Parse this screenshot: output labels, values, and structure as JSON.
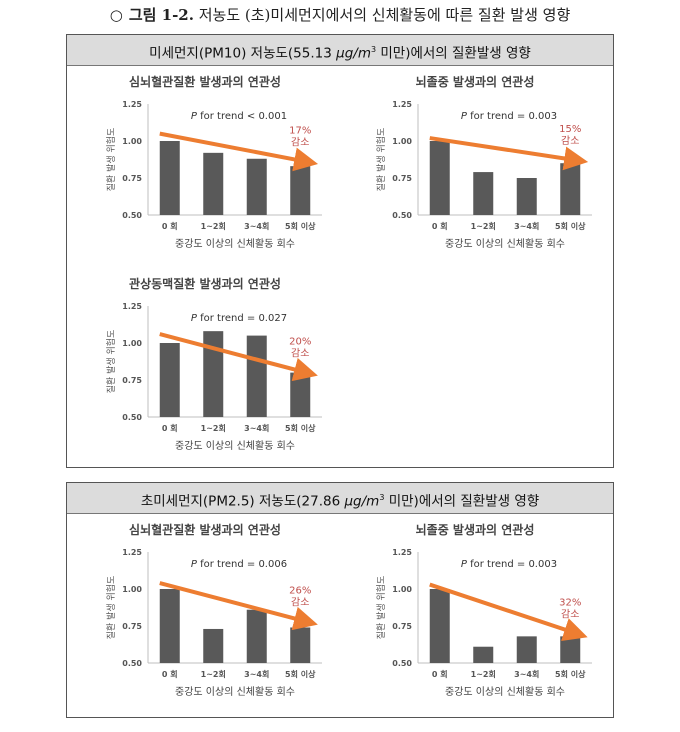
{
  "figure": {
    "marker": "○",
    "label": "그림 1-2.",
    "title": " 저농도 (초)미세먼지에서의 신체활동에 따른 질환 발생 영향"
  },
  "panels": [
    {
      "header_pre": "미세먼지(PM10) 저농도(55.13 ",
      "unit_main": "μg/m",
      "unit_sup": "3",
      "header_post": " 미만)에서의 질환발생 영향"
    },
    {
      "header_pre": "초미세먼지(PM2.5) 저농도(27.86 ",
      "unit_main": "μg/m",
      "unit_sup": "3",
      "header_post": " 미만)에서의 질환발생 영향"
    }
  ],
  "colors": {
    "bar": "#595959",
    "trend": "#ed7d31",
    "reduction_text": "#c0504d",
    "axis": "#bfbfbf"
  },
  "chart_data": [
    {
      "type": "bar",
      "title": "심뇌혈관질환 발생과의 연관성",
      "categories": [
        "0 회",
        "1~2회",
        "3~4회",
        "5회 이상"
      ],
      "values": [
        1.0,
        0.92,
        0.88,
        0.83
      ],
      "ylim": [
        0.5,
        1.25
      ],
      "yticks": [
        "0.50",
        "0.75",
        "1.00",
        "1.25"
      ],
      "ylabel": "질환 발생 위험도",
      "xlabel": "중강도 이상의 신체활동 회수",
      "trend_text": "for trend < 0.001",
      "trend_from": 1.05,
      "trend_to": 0.86,
      "reduction_pct": "17%",
      "reduction_word": "감소"
    },
    {
      "type": "bar",
      "title": "뇌졸중 발생과의 연관성",
      "categories": [
        "0 회",
        "1~2회",
        "3~4회",
        "5회 이상"
      ],
      "values": [
        1.0,
        0.79,
        0.75,
        0.85
      ],
      "ylim": [
        0.5,
        1.25
      ],
      "yticks": [
        "0.50",
        "0.75",
        "1.00",
        "1.25"
      ],
      "ylabel": "질환 발생 위험도",
      "xlabel": "중강도 이상의 신체활동 회수",
      "trend_text": "for trend = 0.003",
      "trend_from": 1.02,
      "trend_to": 0.87,
      "reduction_pct": "15%",
      "reduction_word": "감소"
    },
    {
      "type": "bar",
      "title": "관상동맥질환 발생과의 연관성",
      "categories": [
        "0 회",
        "1~2회",
        "3~4회",
        "5회 이상"
      ],
      "values": [
        1.0,
        1.08,
        1.05,
        0.8
      ],
      "ylim": [
        0.5,
        1.25
      ],
      "yticks": [
        "0.50",
        "0.75",
        "1.00",
        "1.25"
      ],
      "ylabel": "질환 발생 위험도",
      "xlabel": "중강도 이상의 신체활동 회수",
      "trend_text": "for trend = 0.027",
      "trend_from": 1.06,
      "trend_to": 0.8,
      "reduction_pct": "20%",
      "reduction_word": "감소"
    },
    {
      "type": "bar",
      "title": "심뇌혈관질환 발생과의 연관성",
      "categories": [
        "0 회",
        "1~2회",
        "3~4회",
        "5회 이상"
      ],
      "values": [
        1.0,
        0.73,
        0.86,
        0.74
      ],
      "ylim": [
        0.5,
        1.25
      ],
      "yticks": [
        "0.50",
        "0.75",
        "1.00",
        "1.25"
      ],
      "ylabel": "질환 발생 위험도",
      "xlabel": "중강도 이상의 신체활동 회수",
      "trend_text": "for trend = 0.006",
      "trend_from": 1.04,
      "trend_to": 0.78,
      "reduction_pct": "26%",
      "reduction_word": "감소"
    },
    {
      "type": "bar",
      "title": "뇌졸중 발생과의 연관성",
      "categories": [
        "0 회",
        "1~2회",
        "3~4회",
        "5회 이상"
      ],
      "values": [
        1.0,
        0.61,
        0.68,
        0.68
      ],
      "ylim": [
        0.5,
        1.25
      ],
      "yticks": [
        "0.50",
        "0.75",
        "1.00",
        "1.25"
      ],
      "ylabel": "질환 발생 위험도",
      "xlabel": "중강도 이상의 신체활동 회수",
      "trend_text": "for trend = 0.003",
      "trend_from": 1.03,
      "trend_to": 0.7,
      "reduction_pct": "32%",
      "reduction_word": "감소"
    }
  ]
}
